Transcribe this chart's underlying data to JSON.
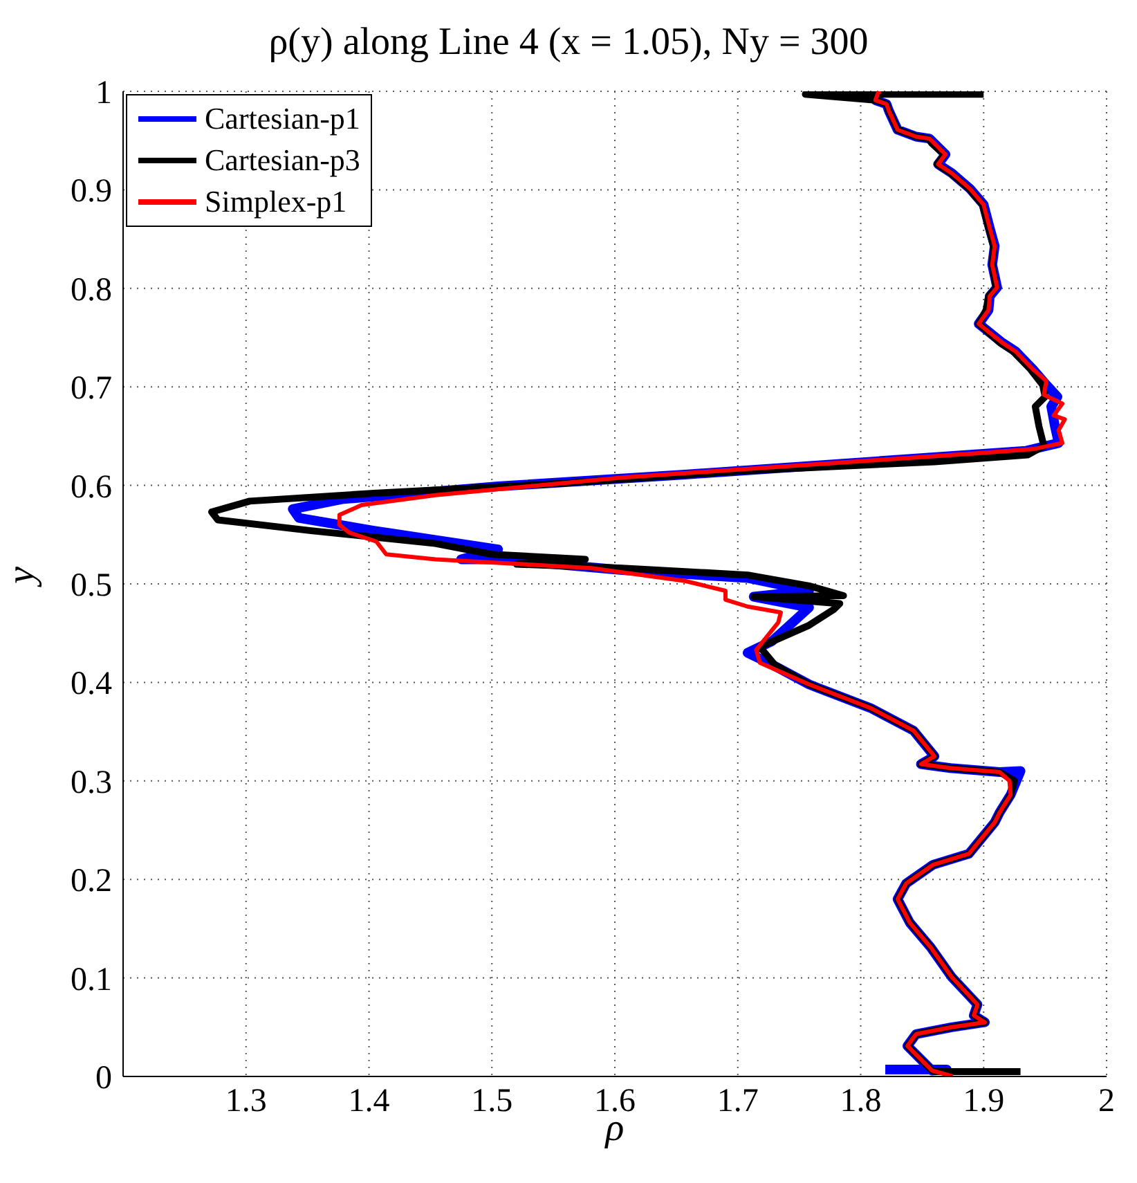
{
  "chart_data": {
    "type": "line",
    "title": "ρ(y) along Line 4 (x = 1.05), Ny = 300",
    "xlabel": "ρ",
    "ylabel": "y",
    "xlim": [
      1.2,
      2
    ],
    "xticks": [
      1.3,
      1.4,
      1.5,
      1.6,
      1.7,
      1.8,
      1.9,
      2
    ],
    "ylim": [
      0,
      1
    ],
    "yticks": [
      0,
      0.1,
      0.2,
      0.3,
      0.4,
      0.5,
      0.6,
      0.7,
      0.8,
      0.9,
      1
    ],
    "grid": true,
    "legend": "top left",
    "marker": "none",
    "line_style": "solid",
    "series": [
      {
        "name": "Cartesian-p1",
        "color": "#0000ff",
        "x": [
          1.82,
          1.87,
          1.858,
          1.838,
          1.845,
          1.874,
          1.901,
          1.892,
          1.895,
          1.874,
          1.857,
          1.84,
          1.83,
          1.837,
          1.859,
          1.888,
          1.909,
          1.913,
          1.922,
          1.93,
          1.913,
          1.873,
          1.849,
          1.86,
          1.843,
          1.808,
          1.764,
          1.758,
          1.728,
          1.708,
          1.728,
          1.758,
          1.713,
          1.758,
          1.708,
          1.606,
          1.505,
          1.475,
          1.505,
          1.404,
          1.343,
          1.338,
          1.378,
          1.505,
          1.657,
          1.808,
          1.934,
          1.961,
          1.958,
          1.955,
          1.96,
          1.951,
          1.94,
          1.926,
          1.915,
          1.896,
          1.904,
          1.905,
          1.911,
          1.907,
          1.909,
          1.905,
          1.9,
          1.889,
          1.874,
          1.863,
          1.869,
          1.86,
          1.856,
          1.845,
          1.83,
          1.823,
          1.821,
          1.812,
          1.814,
          1.816
        ],
        "values": [
          0.007,
          0.007,
          0.006,
          0.031,
          0.043,
          0.05,
          0.055,
          0.062,
          0.073,
          0.101,
          0.131,
          0.156,
          0.18,
          0.196,
          0.215,
          0.226,
          0.258,
          0.268,
          0.286,
          0.31,
          0.309,
          0.313,
          0.317,
          0.325,
          0.351,
          0.374,
          0.395,
          0.398,
          0.418,
          0.43,
          0.442,
          0.476,
          0.487,
          0.493,
          0.506,
          0.514,
          0.525,
          0.525,
          0.535,
          0.554,
          0.567,
          0.576,
          0.586,
          0.599,
          0.611,
          0.624,
          0.635,
          0.643,
          0.66,
          0.68,
          0.69,
          0.702,
          0.718,
          0.736,
          0.745,
          0.764,
          0.778,
          0.792,
          0.801,
          0.824,
          0.843,
          0.861,
          0.885,
          0.901,
          0.917,
          0.926,
          0.936,
          0.947,
          0.952,
          0.954,
          0.961,
          0.98,
          0.987,
          0.991,
          0.998,
          1.0
        ]
      },
      {
        "name": "Cartesian-p3",
        "color": "#000000",
        "x": [
          1.93,
          1.86,
          1.858,
          1.838,
          1.845,
          1.874,
          1.901,
          1.892,
          1.895,
          1.874,
          1.857,
          1.84,
          1.83,
          1.837,
          1.859,
          1.888,
          1.909,
          1.913,
          1.922,
          1.925,
          1.913,
          1.873,
          1.849,
          1.86,
          1.843,
          1.808,
          1.764,
          1.758,
          1.73,
          1.718,
          1.758,
          1.778,
          1.783,
          1.713,
          1.786,
          1.758,
          1.708,
          1.606,
          1.52,
          1.576,
          1.5,
          1.454,
          1.353,
          1.277,
          1.272,
          1.303,
          1.404,
          1.556,
          1.708,
          1.86,
          1.936,
          1.949,
          1.945,
          1.942,
          1.95,
          1.948,
          1.938,
          1.924,
          1.913,
          1.896,
          1.902,
          1.904,
          1.91,
          1.907,
          1.908,
          1.904,
          1.899,
          1.888,
          1.873,
          1.862,
          1.868,
          1.858,
          1.855,
          1.845,
          1.83,
          1.823,
          1.821,
          1.812,
          1.755,
          1.9
        ],
        "values": [
          0.005,
          0.005,
          0.006,
          0.031,
          0.043,
          0.05,
          0.055,
          0.062,
          0.073,
          0.101,
          0.131,
          0.156,
          0.18,
          0.196,
          0.215,
          0.226,
          0.258,
          0.268,
          0.286,
          0.3,
          0.309,
          0.313,
          0.317,
          0.325,
          0.351,
          0.374,
          0.395,
          0.398,
          0.418,
          0.436,
          0.458,
          0.474,
          0.48,
          0.487,
          0.488,
          0.498,
          0.509,
          0.516,
          0.52,
          0.525,
          0.53,
          0.541,
          0.554,
          0.565,
          0.573,
          0.584,
          0.592,
          0.602,
          0.615,
          0.624,
          0.631,
          0.64,
          0.66,
          0.68,
          0.69,
          0.702,
          0.718,
          0.736,
          0.745,
          0.764,
          0.778,
          0.792,
          0.801,
          0.824,
          0.843,
          0.861,
          0.885,
          0.901,
          0.917,
          0.926,
          0.936,
          0.947,
          0.952,
          0.954,
          0.961,
          0.98,
          0.987,
          0.991,
          0.997,
          0.997
        ]
      },
      {
        "name": "Simplex-p1",
        "color": "#ff0000",
        "x": [
          1.875,
          1.858,
          1.838,
          1.845,
          1.874,
          1.901,
          1.892,
          1.895,
          1.874,
          1.857,
          1.84,
          1.83,
          1.837,
          1.859,
          1.888,
          1.909,
          1.913,
          1.922,
          1.921,
          1.913,
          1.873,
          1.849,
          1.86,
          1.843,
          1.808,
          1.758,
          1.718,
          1.715,
          1.733,
          1.735,
          1.708,
          1.69,
          1.69,
          1.657,
          1.581,
          1.454,
          1.414,
          1.406,
          1.384,
          1.376,
          1.376,
          1.394,
          1.454,
          1.606,
          1.758,
          1.9,
          1.941,
          1.964,
          1.961,
          1.966,
          1.957,
          1.964,
          1.949,
          1.951,
          1.94,
          1.926,
          1.915,
          1.896,
          1.904,
          1.905,
          1.911,
          1.907,
          1.909,
          1.905,
          1.9,
          1.889,
          1.874,
          1.863,
          1.869,
          1.86,
          1.856,
          1.845,
          1.83,
          1.823,
          1.821,
          1.812,
          1.814,
          1.816
        ],
        "values": [
          0.0,
          0.006,
          0.031,
          0.043,
          0.05,
          0.055,
          0.062,
          0.073,
          0.101,
          0.131,
          0.156,
          0.18,
          0.196,
          0.215,
          0.226,
          0.258,
          0.268,
          0.286,
          0.3,
          0.309,
          0.313,
          0.317,
          0.325,
          0.351,
          0.374,
          0.398,
          0.42,
          0.433,
          0.461,
          0.471,
          0.477,
          0.484,
          0.493,
          0.503,
          0.516,
          0.525,
          0.53,
          0.543,
          0.552,
          0.56,
          0.57,
          0.58,
          0.59,
          0.608,
          0.621,
          0.633,
          0.637,
          0.643,
          0.656,
          0.667,
          0.671,
          0.683,
          0.692,
          0.706,
          0.718,
          0.736,
          0.745,
          0.764,
          0.778,
          0.792,
          0.801,
          0.824,
          0.843,
          0.861,
          0.885,
          0.901,
          0.917,
          0.926,
          0.936,
          0.947,
          0.952,
          0.954,
          0.961,
          0.98,
          0.987,
          0.991,
          0.998,
          1.0
        ]
      }
    ]
  }
}
